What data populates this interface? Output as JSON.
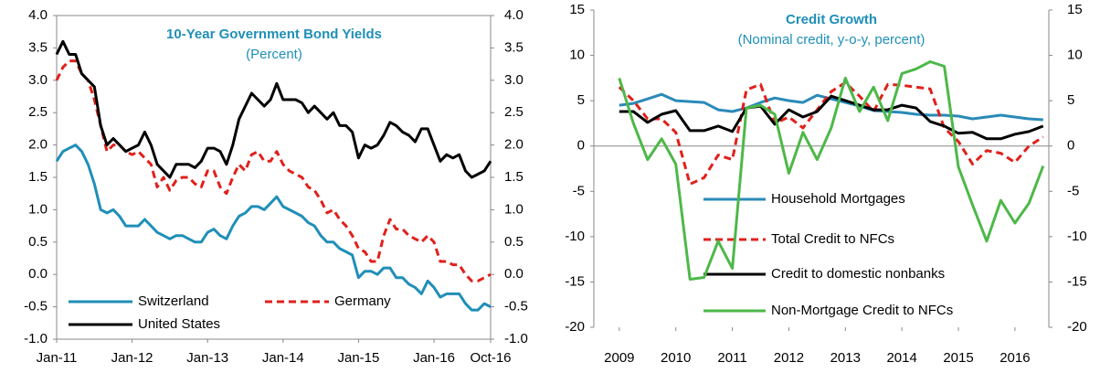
{
  "chart_data": [
    {
      "type": "line",
      "title": "10-Year Government Bond Yields",
      "subtitle": "(Percent)",
      "x": [
        0,
        1,
        2,
        3,
        4,
        5,
        6,
        7,
        8,
        9,
        10,
        11,
        12,
        13,
        14,
        15,
        16,
        17,
        18,
        19,
        20,
        21,
        22,
        23,
        24,
        25,
        26,
        27,
        28,
        29,
        30,
        31,
        32,
        33,
        34,
        35,
        36,
        37,
        38,
        39,
        40,
        41,
        42,
        43,
        44,
        45,
        46,
        47,
        48,
        49,
        50,
        51,
        52,
        53,
        54,
        55,
        56,
        57,
        58,
        59,
        60,
        61,
        62,
        63,
        64,
        65,
        66,
        67,
        68,
        69
      ],
      "xlim": [
        0,
        69
      ],
      "xticks": [
        {
          "value": 0,
          "label": "Jan-11"
        },
        {
          "value": 12,
          "label": "Jan-12"
        },
        {
          "value": 24,
          "label": "Jan-13"
        },
        {
          "value": 36,
          "label": "Jan-14"
        },
        {
          "value": 48,
          "label": "Jan-15"
        },
        {
          "value": 60,
          "label": "Jan-16"
        },
        {
          "value": 69,
          "label": "Oct-16"
        }
      ],
      "ylim": [
        -1,
        4
      ],
      "yticks": [
        {
          "value": -1,
          "label": "-1.0"
        },
        {
          "value": -0.5,
          "label": "-0.5"
        },
        {
          "value": 0,
          "label": "0.0"
        },
        {
          "value": 0.5,
          "label": "0.5"
        },
        {
          "value": 1,
          "label": "1.0"
        },
        {
          "value": 1.5,
          "label": "1.5"
        },
        {
          "value": 2,
          "label": "2.0"
        },
        {
          "value": 2.5,
          "label": "2.5"
        },
        {
          "value": 3,
          "label": "3.0"
        },
        {
          "value": 3.5,
          "label": "3.5"
        },
        {
          "value": 4,
          "label": "4.0"
        }
      ],
      "y2lim": [
        -1,
        4
      ],
      "y2ticks": [
        {
          "value": -1,
          "label": "-1.0"
        },
        {
          "value": -0.5,
          "label": "-0.5"
        },
        {
          "value": 0,
          "label": "0.0"
        },
        {
          "value": 0.5,
          "label": "0.5"
        },
        {
          "value": 1,
          "label": "1.0"
        },
        {
          "value": 1.5,
          "label": "1.5"
        },
        {
          "value": 2,
          "label": "2.0"
        },
        {
          "value": 2.5,
          "label": "2.5"
        },
        {
          "value": 3,
          "label": "3.0"
        },
        {
          "value": 3.5,
          "label": "3.5"
        },
        {
          "value": 4,
          "label": "4.0"
        }
      ],
      "legend": "lower-left",
      "series": [
        {
          "name": "Switzerland",
          "color": "#1f8fb8",
          "dash": false,
          "values": [
            1.75,
            1.9,
            1.95,
            2.0,
            1.9,
            1.7,
            1.4,
            1.0,
            0.95,
            1.0,
            0.9,
            0.75,
            0.75,
            0.75,
            0.85,
            0.75,
            0.65,
            0.6,
            0.55,
            0.6,
            0.6,
            0.55,
            0.5,
            0.5,
            0.65,
            0.7,
            0.6,
            0.55,
            0.75,
            0.9,
            0.95,
            1.05,
            1.05,
            1.0,
            1.1,
            1.2,
            1.05,
            1.0,
            0.95,
            0.9,
            0.8,
            0.75,
            0.6,
            0.5,
            0.5,
            0.4,
            0.35,
            0.3,
            -0.05,
            0.05,
            0.05,
            0.0,
            0.1,
            0.1,
            -0.05,
            -0.05,
            -0.15,
            -0.2,
            -0.3,
            -0.1,
            -0.2,
            -0.35,
            -0.3,
            -0.3,
            -0.3,
            -0.45,
            -0.55,
            -0.55,
            -0.45,
            -0.5
          ]
        },
        {
          "name": "Germany",
          "color": "#e0201b",
          "dash": true,
          "values": [
            3.0,
            3.2,
            3.3,
            3.3,
            3.1,
            3.0,
            2.7,
            2.3,
            1.9,
            2.0,
            2.0,
            1.9,
            1.85,
            1.9,
            1.8,
            1.7,
            1.35,
            1.5,
            1.3,
            1.45,
            1.5,
            1.5,
            1.4,
            1.35,
            1.6,
            1.6,
            1.35,
            1.25,
            1.5,
            1.7,
            1.6,
            1.85,
            1.9,
            1.75,
            1.75,
            1.9,
            1.7,
            1.6,
            1.55,
            1.5,
            1.35,
            1.3,
            1.15,
            0.95,
            1.0,
            0.85,
            0.75,
            0.6,
            0.4,
            0.35,
            0.2,
            0.2,
            0.6,
            0.85,
            0.7,
            0.7,
            0.6,
            0.55,
            0.5,
            0.6,
            0.5,
            0.2,
            0.2,
            0.15,
            0.15,
            0.0,
            -0.1,
            -0.1,
            -0.05,
            0.0
          ]
        },
        {
          "name": "United States",
          "color": "#000000",
          "dash": false,
          "values": [
            3.4,
            3.6,
            3.4,
            3.4,
            3.1,
            3.0,
            2.9,
            2.3,
            2.0,
            2.1,
            2.0,
            1.9,
            1.95,
            2.0,
            2.2,
            2.0,
            1.7,
            1.6,
            1.5,
            1.7,
            1.7,
            1.7,
            1.65,
            1.75,
            1.95,
            1.95,
            1.9,
            1.7,
            2.0,
            2.4,
            2.6,
            2.8,
            2.7,
            2.6,
            2.7,
            2.95,
            2.7,
            2.7,
            2.7,
            2.65,
            2.5,
            2.6,
            2.5,
            2.4,
            2.5,
            2.3,
            2.3,
            2.2,
            1.8,
            2.0,
            1.95,
            2.0,
            2.15,
            2.35,
            2.3,
            2.2,
            2.15,
            2.05,
            2.25,
            2.25,
            2.0,
            1.75,
            1.85,
            1.8,
            1.85,
            1.6,
            1.5,
            1.55,
            1.6,
            1.75
          ]
        }
      ]
    },
    {
      "type": "line",
      "title": "Credit Growth",
      "subtitle": "(Nominal credit, y-o-y, percent)",
      "x": [
        2009,
        2009.25,
        2009.5,
        2009.75,
        2010,
        2010.25,
        2010.5,
        2010.75,
        2011,
        2011.25,
        2011.5,
        2011.75,
        2012,
        2012.25,
        2012.5,
        2012.75,
        2013,
        2013.25,
        2013.5,
        2013.75,
        2014,
        2014.25,
        2014.5,
        2014.75,
        2015,
        2015.25,
        2015.5,
        2015.75,
        2016,
        2016.25,
        2016.5
      ],
      "xlim": [
        2008.55,
        2016.6
      ],
      "xticks": [
        2009,
        2010,
        2011,
        2012,
        2013,
        2014,
        2015,
        2016
      ],
      "ylim": [
        -20,
        15
      ],
      "yticks": [
        -20,
        -15,
        -10,
        -5,
        0,
        5,
        10,
        15
      ],
      "y2lim": [
        -20,
        15
      ],
      "y2ticks": [
        -20,
        -15,
        -10,
        -5,
        0,
        5,
        10,
        15
      ],
      "legend": "lower-left",
      "series": [
        {
          "name": "Household Mortgages",
          "color": "#2a8ab8",
          "dash": false,
          "values": [
            4.5,
            4.7,
            5.2,
            5.7,
            5.0,
            4.9,
            4.8,
            4.0,
            3.8,
            4.2,
            4.8,
            5.3,
            5.0,
            4.8,
            5.6,
            5.2,
            4.8,
            4.4,
            3.9,
            3.8,
            3.7,
            3.5,
            3.4,
            3.4,
            3.3,
            3.0,
            3.2,
            3.4,
            3.2,
            3.0,
            2.9
          ]
        },
        {
          "name": "Total Credit to NFCs",
          "color": "#e0201b",
          "dash": true,
          "values": [
            6.5,
            5.0,
            3.0,
            3.0,
            1.5,
            -4.2,
            -3.5,
            -1.0,
            -1.5,
            6.2,
            6.8,
            2.5,
            3.2,
            2.0,
            4.0,
            6.0,
            7.0,
            5.5,
            3.8,
            6.8,
            6.7,
            6.5,
            6.3,
            2.0,
            0.5,
            -2.0,
            -0.5,
            -0.8,
            -1.8,
            0,
            1.0
          ]
        },
        {
          "name": "Credit to domestic nonbanks",
          "color": "#000000",
          "dash": false,
          "values": [
            3.8,
            3.8,
            2.6,
            3.5,
            3.9,
            1.7,
            1.7,
            2.2,
            1.6,
            4.2,
            4.4,
            2.4,
            4.0,
            3.2,
            3.8,
            5.5,
            5.0,
            4.5,
            4.0,
            4.0,
            4.5,
            4.2,
            2.7,
            2.2,
            1.4,
            1.5,
            0.8,
            0.8,
            1.3,
            1.6,
            2.2
          ]
        },
        {
          "name": "Non-Mortgage Credit to NFCs",
          "color": "#4db848",
          "dash": false,
          "values": [
            7.5,
            2.5,
            -1.5,
            0.8,
            -2.0,
            -14.7,
            -14.5,
            -10.5,
            -13.5,
            4.2,
            4.5,
            3.5,
            -3.0,
            1.5,
            -1.5,
            2.0,
            7.5,
            3.8,
            6.5,
            2.8,
            8.0,
            8.5,
            9.3,
            8.8,
            -2.3,
            -6.5,
            -10.5,
            -6.0,
            -8.5,
            -6.3,
            -2.2
          ]
        }
      ]
    }
  ]
}
